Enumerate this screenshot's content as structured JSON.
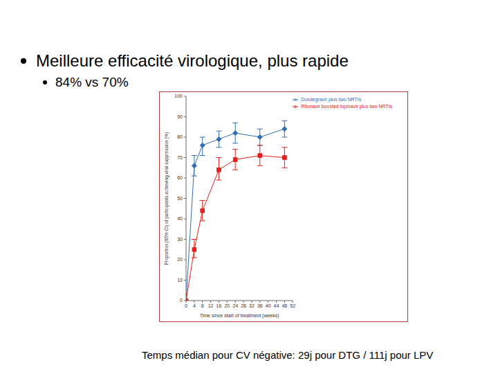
{
  "bullets": [
    {
      "text": "Meilleure efficacité virologique, plus rapide",
      "level": 1
    },
    {
      "text": "84% vs 70%",
      "level": 2
    }
  ],
  "footer": "Temps médian pour CV négative: 29j pour DTG / 111j pour LPV",
  "chart_data": {
    "type": "line",
    "x_label": "Time since start of treatment (weeks)",
    "y_label": "Proportion (95% CI) of participants achieving viral suppression (%)",
    "x": [
      0,
      4,
      8,
      16,
      24,
      36,
      48
    ],
    "xlim": [
      0,
      52
    ],
    "xticks": [
      0,
      4,
      8,
      12,
      16,
      20,
      24,
      28,
      32,
      36,
      40,
      44,
      48,
      52
    ],
    "ylim": [
      0,
      100
    ],
    "yticks": [
      0,
      10,
      20,
      30,
      40,
      50,
      60,
      70,
      80,
      90,
      100
    ],
    "grid": false,
    "legend": "top-right",
    "series": [
      {
        "name": "Dolutegravir plus two NRTIs",
        "color": "#2e6db4",
        "marker": "diamond",
        "line_style": "solid",
        "values": [
          0,
          66,
          76,
          79,
          82,
          80,
          84
        ],
        "ci_low": [
          null,
          61,
          71,
          75,
          77,
          76,
          80
        ],
        "ci_high": [
          null,
          71,
          80,
          83,
          87,
          84,
          88
        ]
      },
      {
        "name": "Ritonavir boosted lopinavir plus two NRTIs",
        "color": "#e0211b",
        "marker": "square",
        "line_style": "solid",
        "values": [
          0,
          25,
          44,
          64,
          69,
          71,
          70
        ],
        "ci_low": [
          null,
          21,
          39,
          59,
          64,
          66,
          65
        ],
        "ci_high": [
          null,
          30,
          49,
          70,
          74,
          76,
          75
        ]
      }
    ]
  }
}
